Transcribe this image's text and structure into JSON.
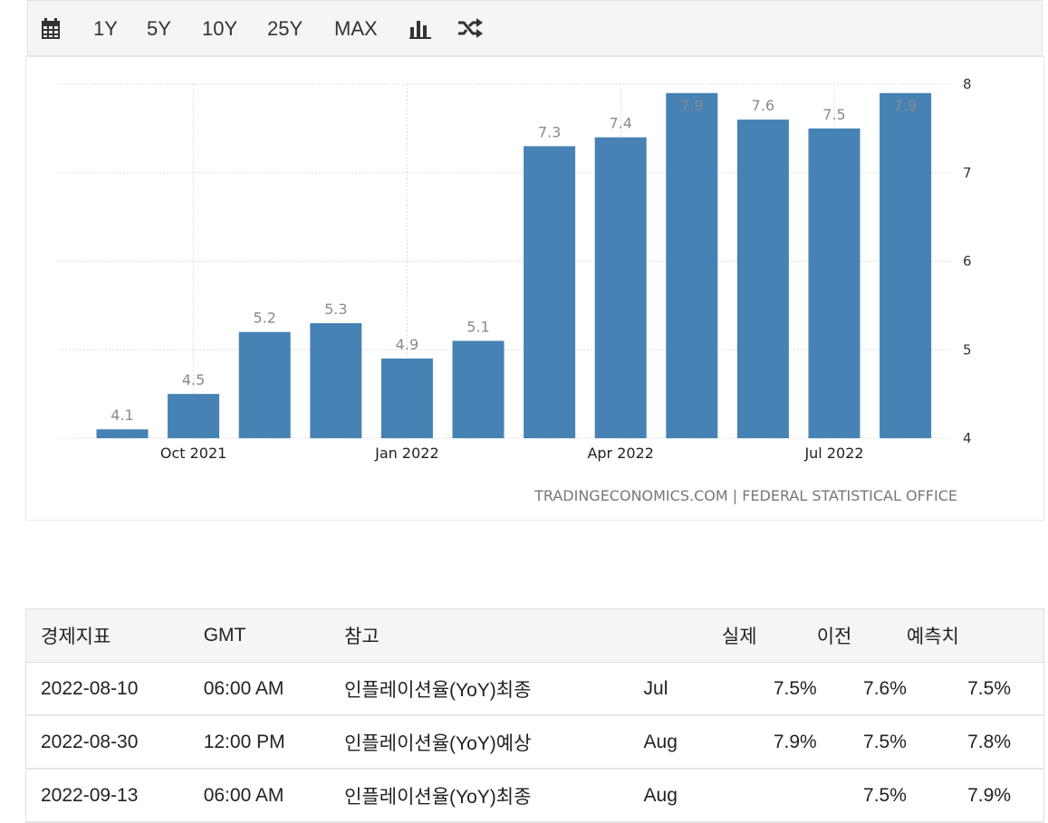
{
  "toolbar": {
    "calendar_icon": "calendar-icon",
    "ranges": [
      "1Y",
      "5Y",
      "10Y",
      "25Y",
      "MAX"
    ],
    "bar_chart_icon": "bar-chart-icon",
    "shuffle_icon": "shuffle-icon"
  },
  "colors": {
    "bar": "#4682b4",
    "bar_label": "#8a8a8a",
    "grid": "#dedede"
  },
  "chart_data": {
    "type": "bar",
    "categories": [
      "2021-09",
      "2021-10",
      "2021-11",
      "2021-12",
      "2022-01",
      "2022-02",
      "2022-03",
      "2022-04",
      "2022-05",
      "2022-06",
      "2022-07",
      "2022-08"
    ],
    "values": [
      4.1,
      4.5,
      5.2,
      5.3,
      4.9,
      5.1,
      7.3,
      7.4,
      7.9,
      7.6,
      7.5,
      7.9
    ],
    "value_labels": [
      "4.1",
      "4.5",
      "5.2",
      "5.3",
      "4.9",
      "5.1",
      "7.3",
      "7.4",
      "7.9",
      "7.6",
      "7.5",
      "7.9"
    ],
    "x_ticks": [
      {
        "label": "Oct 2021",
        "category": "2021-10"
      },
      {
        "label": "Jan 2022",
        "category": "2022-01"
      },
      {
        "label": "Apr 2022",
        "category": "2022-04"
      },
      {
        "label": "Jul 2022",
        "category": "2022-07"
      }
    ],
    "y_ticks": [
      "4",
      "5",
      "6",
      "7",
      "8"
    ],
    "ylim": [
      4,
      8
    ],
    "y_axis_side": "right",
    "grid": true,
    "title": "",
    "xlabel": "",
    "ylabel": "",
    "credit": "TRADINGECONOMICS.COM | FEDERAL STATISTICAL OFFICE"
  },
  "table": {
    "headers": [
      "경제지표",
      "GMT",
      "참고",
      "",
      "실제",
      "이전",
      "예측치"
    ],
    "rows": [
      [
        "2022-08-10",
        "06:00 AM",
        "인플레이션율(YoY)최종",
        "Jul",
        "7.5%",
        "7.6%",
        "7.5%"
      ],
      [
        "2022-08-30",
        "12:00 PM",
        "인플레이션율(YoY)예상",
        "Aug",
        "7.9%",
        "7.5%",
        "7.8%"
      ],
      [
        "2022-09-13",
        "06:00 AM",
        "인플레이션율(YoY)최종",
        "Aug",
        "",
        "7.5%",
        "7.9%"
      ]
    ]
  }
}
